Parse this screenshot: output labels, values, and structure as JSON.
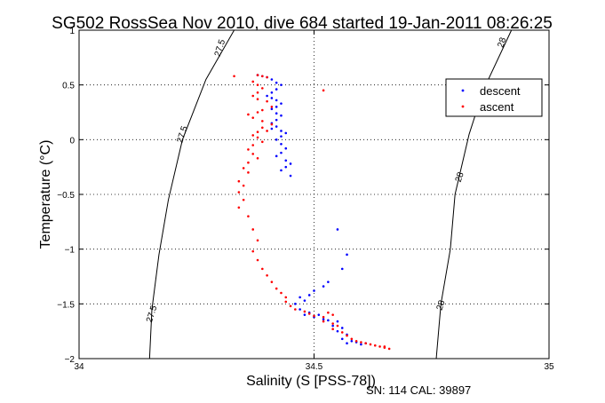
{
  "chart_data": {
    "type": "scatter",
    "title": "SG502 RossSea Nov 2010, dive 684 started 19-Jan-2011 08:26:25",
    "xlabel": "Salinity (S [PSS-78])",
    "ylabel": "Temperature (°C)",
    "xlim": [
      34,
      35
    ],
    "ylim": [
      -2,
      1
    ],
    "x_ticks": [
      "34",
      "34.5",
      "35"
    ],
    "y_ticks": [
      "-2",
      "-1.5",
      "-1",
      "-0.5",
      "0",
      "0.5",
      "1"
    ],
    "grid": true,
    "legend_position": "top-right",
    "series": [
      {
        "name": "descent",
        "color": "#0000ff",
        "points": [
          [
            34.38,
            0.59
          ],
          [
            34.39,
            0.58
          ],
          [
            34.4,
            0.57
          ],
          [
            34.41,
            0.55
          ],
          [
            34.42,
            0.52
          ],
          [
            34.43,
            0.5
          ],
          [
            34.42,
            0.46
          ],
          [
            34.41,
            0.43
          ],
          [
            34.4,
            0.4
          ],
          [
            34.41,
            0.38
          ],
          [
            34.42,
            0.36
          ],
          [
            34.43,
            0.33
          ],
          [
            34.42,
            0.3
          ],
          [
            34.41,
            0.28
          ],
          [
            34.42,
            0.24
          ],
          [
            34.43,
            0.22
          ],
          [
            34.42,
            0.18
          ],
          [
            34.41,
            0.15
          ],
          [
            34.42,
            0.12
          ],
          [
            34.41,
            0.1
          ],
          [
            34.43,
            0.08
          ],
          [
            34.44,
            0.06
          ],
          [
            34.43,
            0.03
          ],
          [
            34.42,
            0.0
          ],
          [
            34.43,
            -0.04
          ],
          [
            34.44,
            -0.08
          ],
          [
            34.43,
            -0.12
          ],
          [
            34.42,
            -0.15
          ],
          [
            34.44,
            -0.19
          ],
          [
            34.45,
            -0.22
          ],
          [
            34.44,
            -0.25
          ],
          [
            34.43,
            -0.28
          ],
          [
            34.45,
            -0.33
          ],
          [
            34.55,
            -0.82
          ],
          [
            34.57,
            -1.05
          ],
          [
            34.56,
            -1.18
          ],
          [
            34.53,
            -1.3
          ],
          [
            34.52,
            -1.34
          ],
          [
            34.5,
            -1.38
          ],
          [
            34.49,
            -1.42
          ],
          [
            34.47,
            -1.44
          ],
          [
            34.48,
            -1.47
          ],
          [
            34.46,
            -1.5
          ],
          [
            34.47,
            -1.55
          ],
          [
            34.49,
            -1.58
          ],
          [
            34.51,
            -1.6
          ],
          [
            34.5,
            -1.62
          ],
          [
            34.48,
            -1.6
          ],
          [
            34.52,
            -1.64
          ],
          [
            34.53,
            -1.65
          ],
          [
            34.55,
            -1.66
          ],
          [
            34.54,
            -1.7
          ],
          [
            34.56,
            -1.72
          ],
          [
            34.55,
            -1.75
          ],
          [
            34.57,
            -1.78
          ],
          [
            34.56,
            -1.82
          ],
          [
            34.58,
            -1.84
          ],
          [
            34.57,
            -1.86
          ],
          [
            34.59,
            -1.85
          ],
          [
            34.6,
            -1.87
          ],
          [
            34.61,
            -1.86
          ]
        ]
      },
      {
        "name": "ascent",
        "color": "#ff0000",
        "points": [
          [
            34.33,
            0.58
          ],
          [
            34.38,
            0.59
          ],
          [
            34.39,
            0.58
          ],
          [
            34.4,
            0.57
          ],
          [
            34.37,
            0.53
          ],
          [
            34.38,
            0.5
          ],
          [
            34.39,
            0.47
          ],
          [
            34.38,
            0.43
          ],
          [
            34.37,
            0.4
          ],
          [
            34.38,
            0.37
          ],
          [
            34.4,
            0.35
          ],
          [
            34.41,
            0.3
          ],
          [
            34.39,
            0.27
          ],
          [
            34.38,
            0.25
          ],
          [
            34.36,
            0.23
          ],
          [
            34.37,
            0.2
          ],
          [
            34.39,
            0.17
          ],
          [
            34.41,
            0.14
          ],
          [
            34.39,
            0.11
          ],
          [
            34.4,
            0.08
          ],
          [
            34.38,
            0.07
          ],
          [
            34.37,
            0.04
          ],
          [
            34.38,
            0.02
          ],
          [
            34.39,
            -0.02
          ],
          [
            34.37,
            -0.05
          ],
          [
            34.36,
            -0.09
          ],
          [
            34.37,
            -0.13
          ],
          [
            34.38,
            -0.17
          ],
          [
            34.36,
            -0.21
          ],
          [
            34.35,
            -0.26
          ],
          [
            34.36,
            -0.3
          ],
          [
            34.34,
            -0.38
          ],
          [
            34.35,
            -0.42
          ],
          [
            34.34,
            -0.48
          ],
          [
            34.35,
            -0.55
          ],
          [
            34.34,
            -0.62
          ],
          [
            34.52,
            0.45
          ],
          [
            34.36,
            -0.7
          ],
          [
            34.37,
            -0.82
          ],
          [
            34.38,
            -0.92
          ],
          [
            34.37,
            -1.02
          ],
          [
            34.38,
            -1.1
          ],
          [
            34.39,
            -1.18
          ],
          [
            34.4,
            -1.24
          ],
          [
            34.41,
            -1.3
          ],
          [
            34.42,
            -1.36
          ],
          [
            34.43,
            -1.4
          ],
          [
            34.44,
            -1.44
          ],
          [
            34.44,
            -1.48
          ],
          [
            34.45,
            -1.52
          ],
          [
            34.46,
            -1.55
          ],
          [
            34.48,
            -1.57
          ],
          [
            34.49,
            -1.59
          ],
          [
            34.5,
            -1.61
          ],
          [
            34.52,
            -1.62
          ],
          [
            34.53,
            -1.58
          ],
          [
            34.54,
            -1.6
          ],
          [
            34.52,
            -1.66
          ],
          [
            34.54,
            -1.68
          ],
          [
            34.55,
            -1.7
          ],
          [
            34.54,
            -1.73
          ],
          [
            34.56,
            -1.76
          ],
          [
            34.57,
            -1.79
          ],
          [
            34.58,
            -1.82
          ],
          [
            34.59,
            -1.84
          ],
          [
            34.6,
            -1.85
          ],
          [
            34.61,
            -1.86
          ],
          [
            34.62,
            -1.87
          ],
          [
            34.63,
            -1.88
          ],
          [
            34.64,
            -1.89
          ],
          [
            34.65,
            -1.9
          ],
          [
            34.66,
            -1.91
          ],
          [
            34.65,
            -1.89
          ]
        ]
      }
    ],
    "contours": [
      {
        "label": "27.5",
        "points": [
          [
            34.33,
            1.0
          ],
          [
            34.27,
            0.55
          ],
          [
            34.22,
            0.0
          ],
          [
            34.19,
            -0.55
          ],
          [
            34.17,
            -1.05
          ],
          [
            34.155,
            -1.55
          ],
          [
            34.15,
            -2.0
          ]
        ],
        "labels_at": [
          [
            34.305,
            0.83
          ],
          [
            34.225,
            0.04
          ],
          [
            34.16,
            -1.6
          ]
        ]
      },
      {
        "label": "28",
        "points": [
          [
            34.92,
            1.0
          ],
          [
            34.86,
            0.45
          ],
          [
            34.83,
            0.05
          ],
          [
            34.8,
            -0.5
          ],
          [
            34.79,
            -1.0
          ],
          [
            34.77,
            -1.5
          ],
          [
            34.76,
            -2.0
          ]
        ],
        "labels_at": [
          [
            34.905,
            0.88
          ],
          [
            34.815,
            -0.35
          ],
          [
            34.775,
            -1.52
          ]
        ]
      }
    ],
    "footer_note": "SN: 114  CAL: 39897"
  }
}
